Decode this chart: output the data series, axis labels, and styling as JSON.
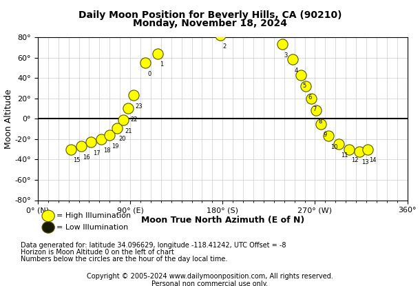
{
  "title1": "Daily Moon Position for Beverly Hills, CA (90210)",
  "title2": "Monday, November 18, 2024",
  "xlabel": "Moon True North Azimuth (E of N)",
  "ylabel": "Moon Altitude",
  "xlim": [
    0,
    360
  ],
  "ylim": [
    -80,
    80
  ],
  "xticks": [
    0,
    90,
    180,
    270,
    360
  ],
  "xtick_labels": [
    "0° (N)",
    "90° (E)",
    "180° (S)",
    "270° (W)",
    "360°"
  ],
  "yticks": [
    -80,
    -60,
    -40,
    -20,
    0,
    20,
    40,
    60,
    80
  ],
  "ytick_labels": [
    "-80°",
    "-60°",
    "-40°",
    "-20°",
    "0°",
    "20°",
    "40°",
    "60°",
    "80°"
  ],
  "moon_data": [
    {
      "hour": 15,
      "azimuth": 32,
      "altitude": -30
    },
    {
      "hour": 16,
      "azimuth": 42,
      "altitude": -27
    },
    {
      "hour": 17,
      "azimuth": 52,
      "altitude": -23
    },
    {
      "hour": 18,
      "azimuth": 62,
      "altitude": -20
    },
    {
      "hour": 19,
      "azimuth": 70,
      "altitude": -16
    },
    {
      "hour": 20,
      "azimuth": 77,
      "altitude": -9
    },
    {
      "hour": 21,
      "azimuth": 83,
      "altitude": -1
    },
    {
      "hour": 22,
      "azimuth": 88,
      "altitude": 10
    },
    {
      "hour": 23,
      "azimuth": 93,
      "altitude": 23
    },
    {
      "hour": 0,
      "azimuth": 105,
      "altitude": 55
    },
    {
      "hour": 1,
      "azimuth": 117,
      "altitude": 64
    },
    {
      "hour": 2,
      "azimuth": 178,
      "altitude": 82
    },
    {
      "hour": 3,
      "azimuth": 238,
      "altitude": 73
    },
    {
      "hour": 4,
      "azimuth": 248,
      "altitude": 58
    },
    {
      "hour": 5,
      "azimuth": 256,
      "altitude": 43
    },
    {
      "hour": 6,
      "azimuth": 261,
      "altitude": 32
    },
    {
      "hour": 7,
      "azimuth": 266,
      "altitude": 20
    },
    {
      "hour": 8,
      "azimuth": 271,
      "altitude": 8
    },
    {
      "hour": 9,
      "azimuth": 276,
      "altitude": -5
    },
    {
      "hour": 10,
      "azimuth": 283,
      "altitude": -17
    },
    {
      "hour": 11,
      "azimuth": 293,
      "altitude": -25
    },
    {
      "hour": 12,
      "azimuth": 303,
      "altitude": -30
    },
    {
      "hour": 13,
      "azimuth": 313,
      "altitude": -32
    },
    {
      "hour": 14,
      "azimuth": 321,
      "altitude": -30
    }
  ],
  "high_illumination_color": "#FFFF00",
  "low_illumination_color": "#1a1a00",
  "dot_edge_color": "#555500",
  "dot_size": 120,
  "horizon_color": "#000000",
  "grid_color": "#cccccc",
  "bg_color": "#ffffff",
  "plot_bg_color": "#ffffff",
  "footer_line1": "Data generated for: latitude 34.096629, longitude -118.41242, UTC Offset = -8",
  "footer_line2": "Horizon is Moon Altitude 0 on the left of chart",
  "footer_line3": "Numbers below the circles are the hour of the day local time.",
  "copyright": "Copyright © 2005-2024 www.dailymoonposition.com, All rights reserved.",
  "copyright2": "Personal non commercial use only."
}
